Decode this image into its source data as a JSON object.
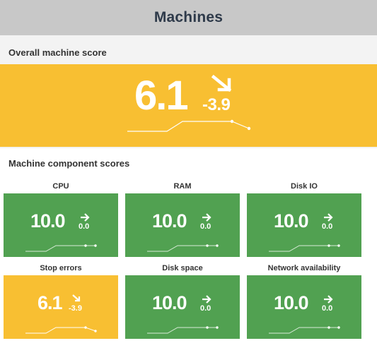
{
  "header": {
    "title": "Machines"
  },
  "overall": {
    "section_title": "Overall machine score",
    "value": "6.1",
    "delta": "-3.9",
    "trend": "down",
    "color": "#f8bf32"
  },
  "components": {
    "section_title": "Machine component scores",
    "tiles": [
      {
        "label": "CPU",
        "value": "10.0",
        "delta": "0.0",
        "trend": "flat",
        "color": "#51a151"
      },
      {
        "label": "RAM",
        "value": "10.0",
        "delta": "0.0",
        "trend": "flat",
        "color": "#51a151"
      },
      {
        "label": "Disk IO",
        "value": "10.0",
        "delta": "0.0",
        "trend": "flat",
        "color": "#51a151"
      },
      {
        "label": "Stop errors",
        "value": "6.1",
        "delta": "-3.9",
        "trend": "down",
        "color": "#f8bf32"
      },
      {
        "label": "Disk space",
        "value": "10.0",
        "delta": "0.0",
        "trend": "flat",
        "color": "#51a151"
      },
      {
        "label": "Network availability",
        "value": "10.0",
        "delta": "0.0",
        "trend": "flat",
        "color": "#51a151"
      }
    ]
  }
}
